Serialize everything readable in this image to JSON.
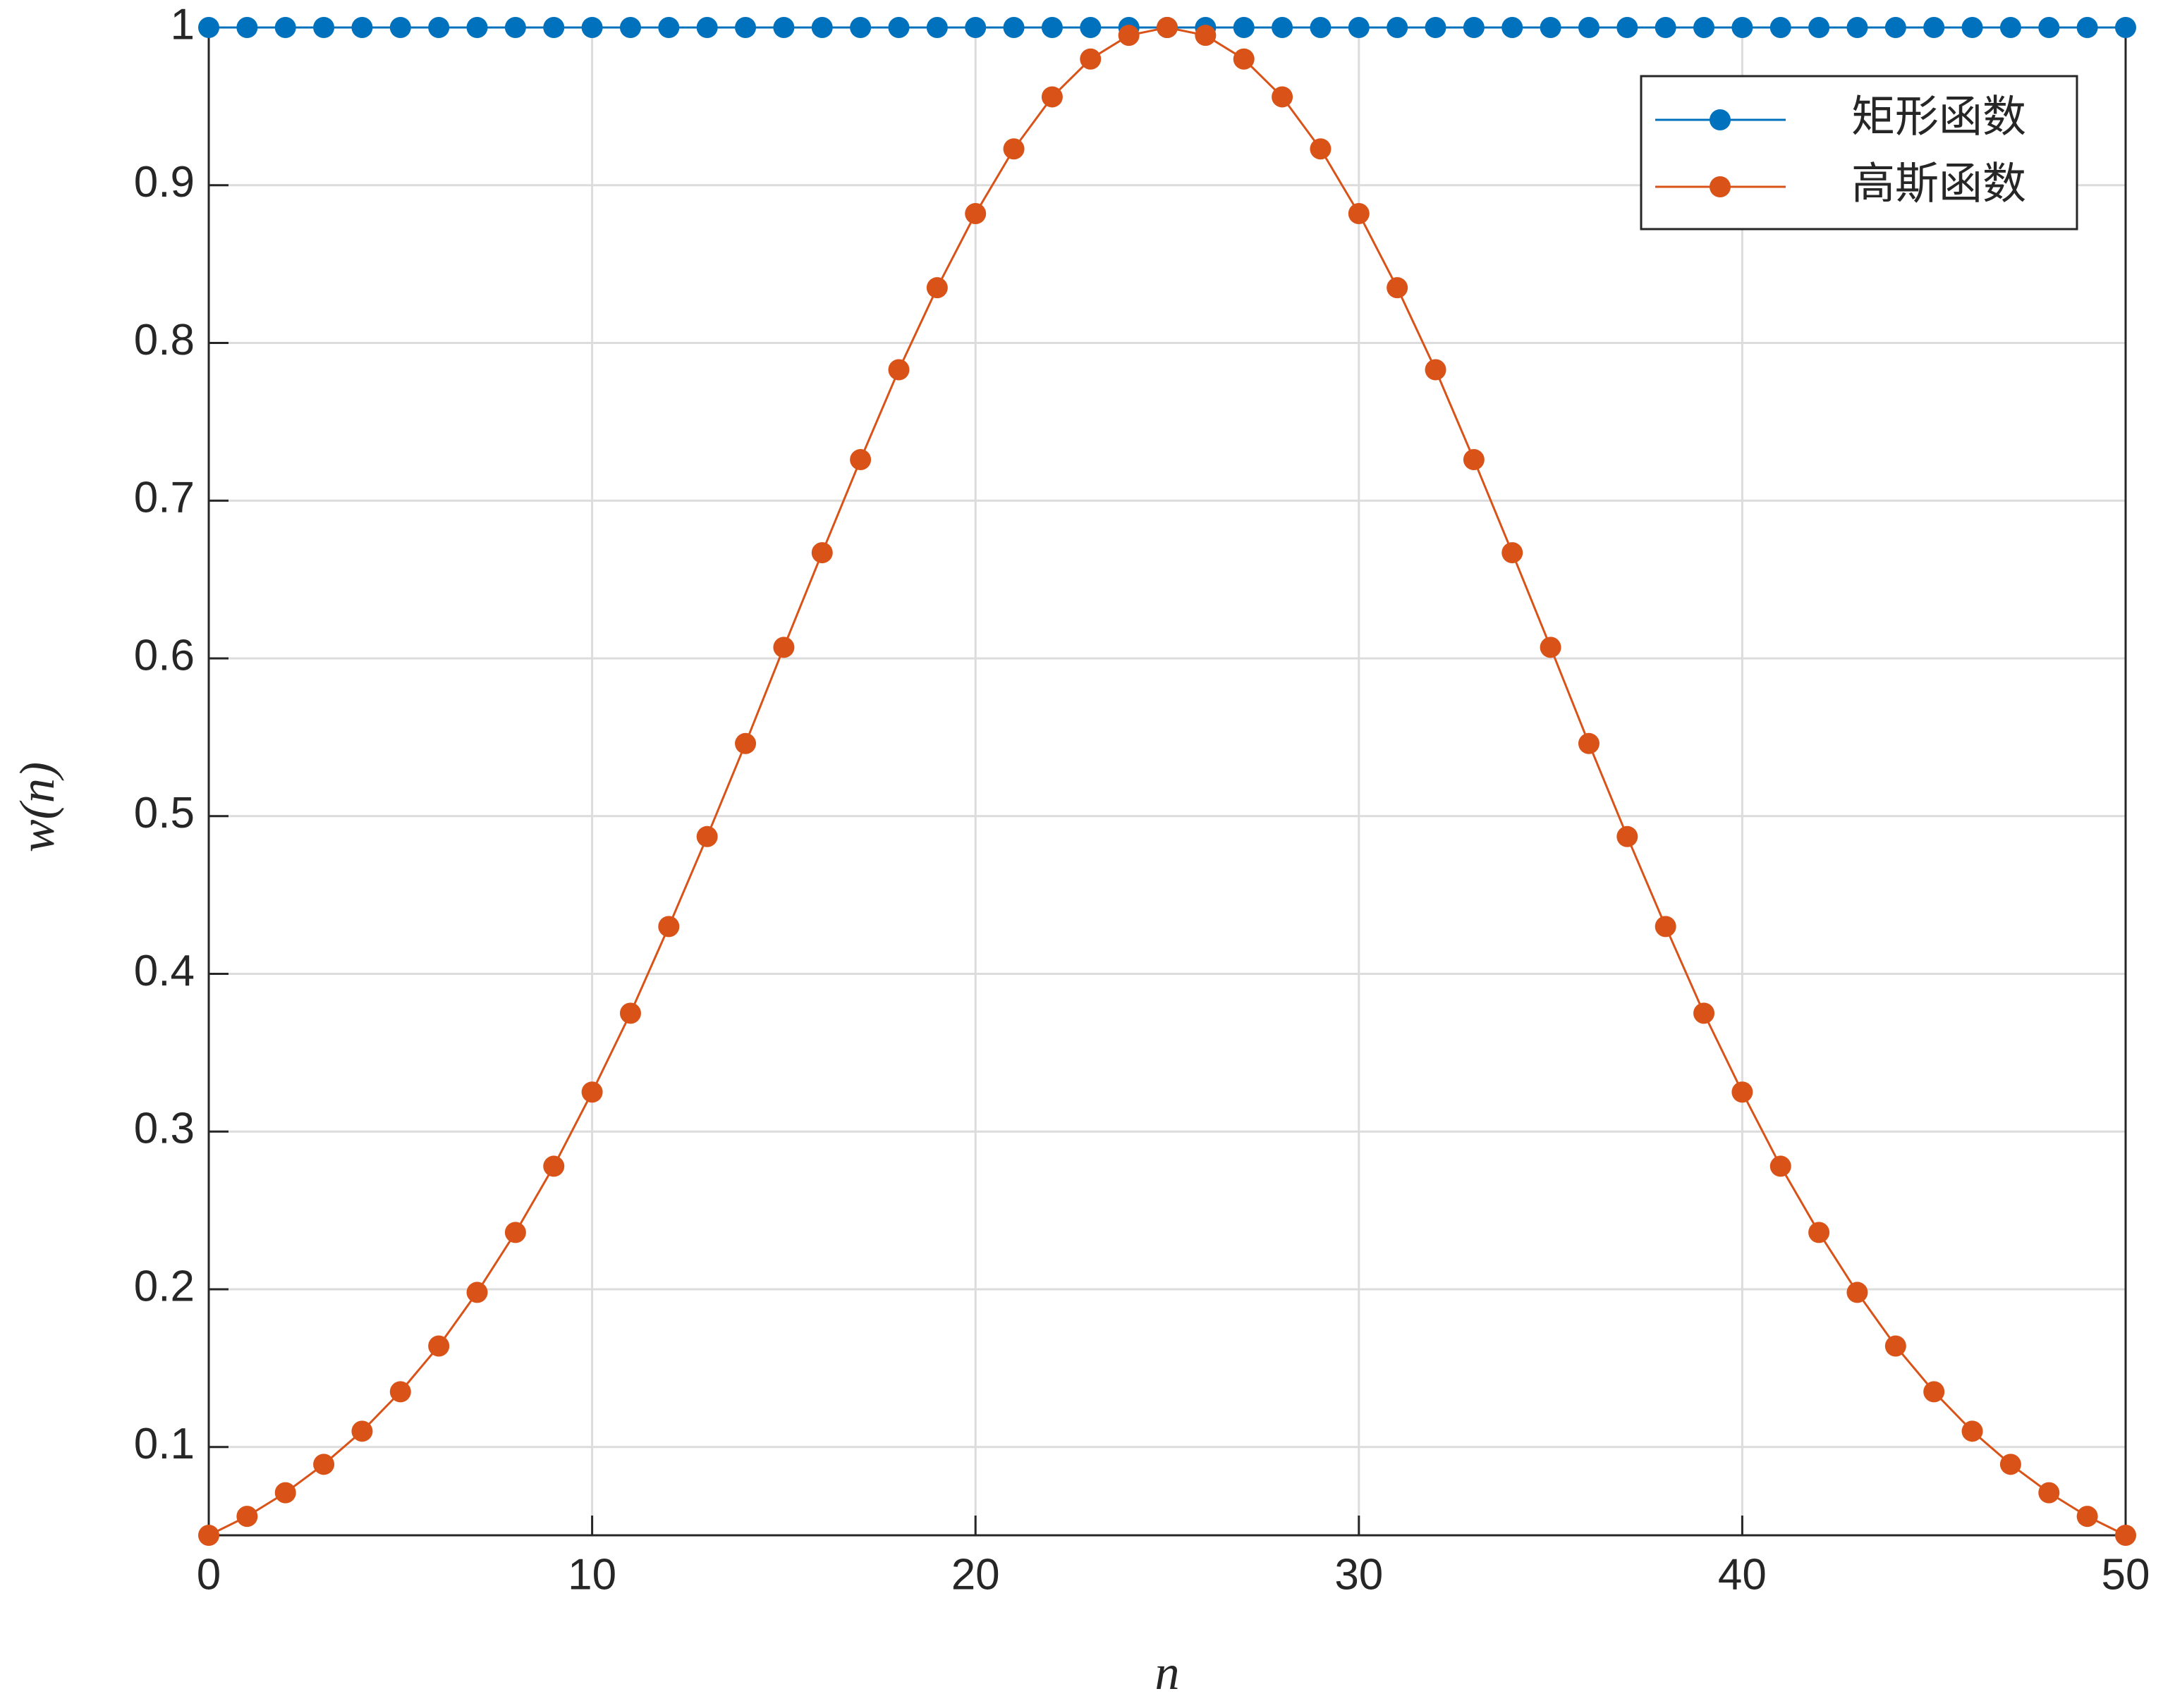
{
  "chart_data": {
    "type": "line",
    "x_label": "n",
    "y_label": "w(n)",
    "x": [
      0,
      1,
      2,
      3,
      4,
      5,
      6,
      7,
      8,
      9,
      10,
      11,
      12,
      13,
      14,
      15,
      16,
      17,
      18,
      19,
      20,
      21,
      22,
      23,
      24,
      25,
      26,
      27,
      28,
      29,
      30,
      31,
      32,
      33,
      34,
      35,
      36,
      37,
      38,
      39,
      40,
      41,
      42,
      43,
      44,
      45,
      46,
      47,
      48,
      49,
      50
    ],
    "series": [
      {
        "name": "矩形函数",
        "color": "#0072bd",
        "values": [
          1,
          1,
          1,
          1,
          1,
          1,
          1,
          1,
          1,
          1,
          1,
          1,
          1,
          1,
          1,
          1,
          1,
          1,
          1,
          1,
          1,
          1,
          1,
          1,
          1,
          1,
          1,
          1,
          1,
          1,
          1,
          1,
          1,
          1,
          1,
          1,
          1,
          1,
          1,
          1,
          1,
          1,
          1,
          1,
          1,
          1,
          1,
          1,
          1,
          1,
          1
        ]
      },
      {
        "name": "高斯函数",
        "color": "#d95319",
        "values": [
          0.044,
          0.056,
          0.071,
          0.089,
          0.11,
          0.135,
          0.164,
          0.198,
          0.236,
          0.278,
          0.325,
          0.375,
          0.43,
          0.487,
          0.546,
          0.607,
          0.667,
          0.726,
          0.783,
          0.835,
          0.882,
          0.923,
          0.956,
          0.98,
          0.995,
          1,
          0.995,
          0.98,
          0.956,
          0.923,
          0.882,
          0.835,
          0.783,
          0.726,
          0.667,
          0.607,
          0.546,
          0.487,
          0.43,
          0.375,
          0.325,
          0.278,
          0.236,
          0.198,
          0.164,
          0.135,
          0.11,
          0.089,
          0.071,
          0.056,
          0.044
        ]
      }
    ],
    "xlim": [
      0,
      50
    ],
    "xticks": [
      0,
      10,
      20,
      30,
      40,
      50
    ],
    "ylim": [
      0.044,
      1
    ],
    "yticks": [
      0.1,
      0.2,
      0.3,
      0.4,
      0.5,
      0.6,
      0.7,
      0.8,
      0.9,
      1
    ],
    "grid": true,
    "legend": "upper right"
  }
}
